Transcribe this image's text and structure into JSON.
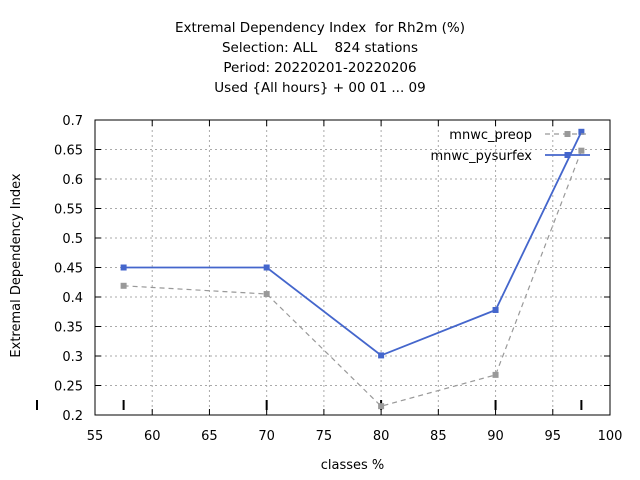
{
  "chart_data": {
    "type": "line",
    "title_lines": [
      "Extremal Dependency Index  for Rh2m (%)",
      "Selection: ALL    824 stations",
      "Period: 20220201-20220206",
      "Used {All hours} + 00 01 ... 09"
    ],
    "xlabel": "classes %",
    "ylabel": "Extremal Dependency Index",
    "xlim": [
      55,
      100
    ],
    "ylim": [
      0.2,
      0.7
    ],
    "xticks": [
      55,
      60,
      65,
      70,
      75,
      80,
      85,
      90,
      95,
      100
    ],
    "yticks": [
      0.2,
      0.25,
      0.3,
      0.35,
      0.4,
      0.45,
      0.5,
      0.55,
      0.6,
      0.65,
      0.7
    ],
    "grid": true,
    "legend_position": "top-right",
    "series": [
      {
        "name": "mnwc_preop",
        "color": "#999999",
        "dashed": true,
        "x": [
          57.5,
          70,
          80,
          90,
          97.5
        ],
        "y": [
          0.419,
          0.405,
          0.215,
          0.268,
          0.648
        ]
      },
      {
        "name": "mnwc_pysurfex",
        "color": "#4466cc",
        "dashed": false,
        "x": [
          57.5,
          70,
          80,
          90,
          97.5
        ],
        "y": [
          0.45,
          0.45,
          0.301,
          0.378,
          0.68
        ]
      }
    ],
    "x_rug": [
      57.5,
      70,
      80,
      90,
      97.5
    ]
  }
}
